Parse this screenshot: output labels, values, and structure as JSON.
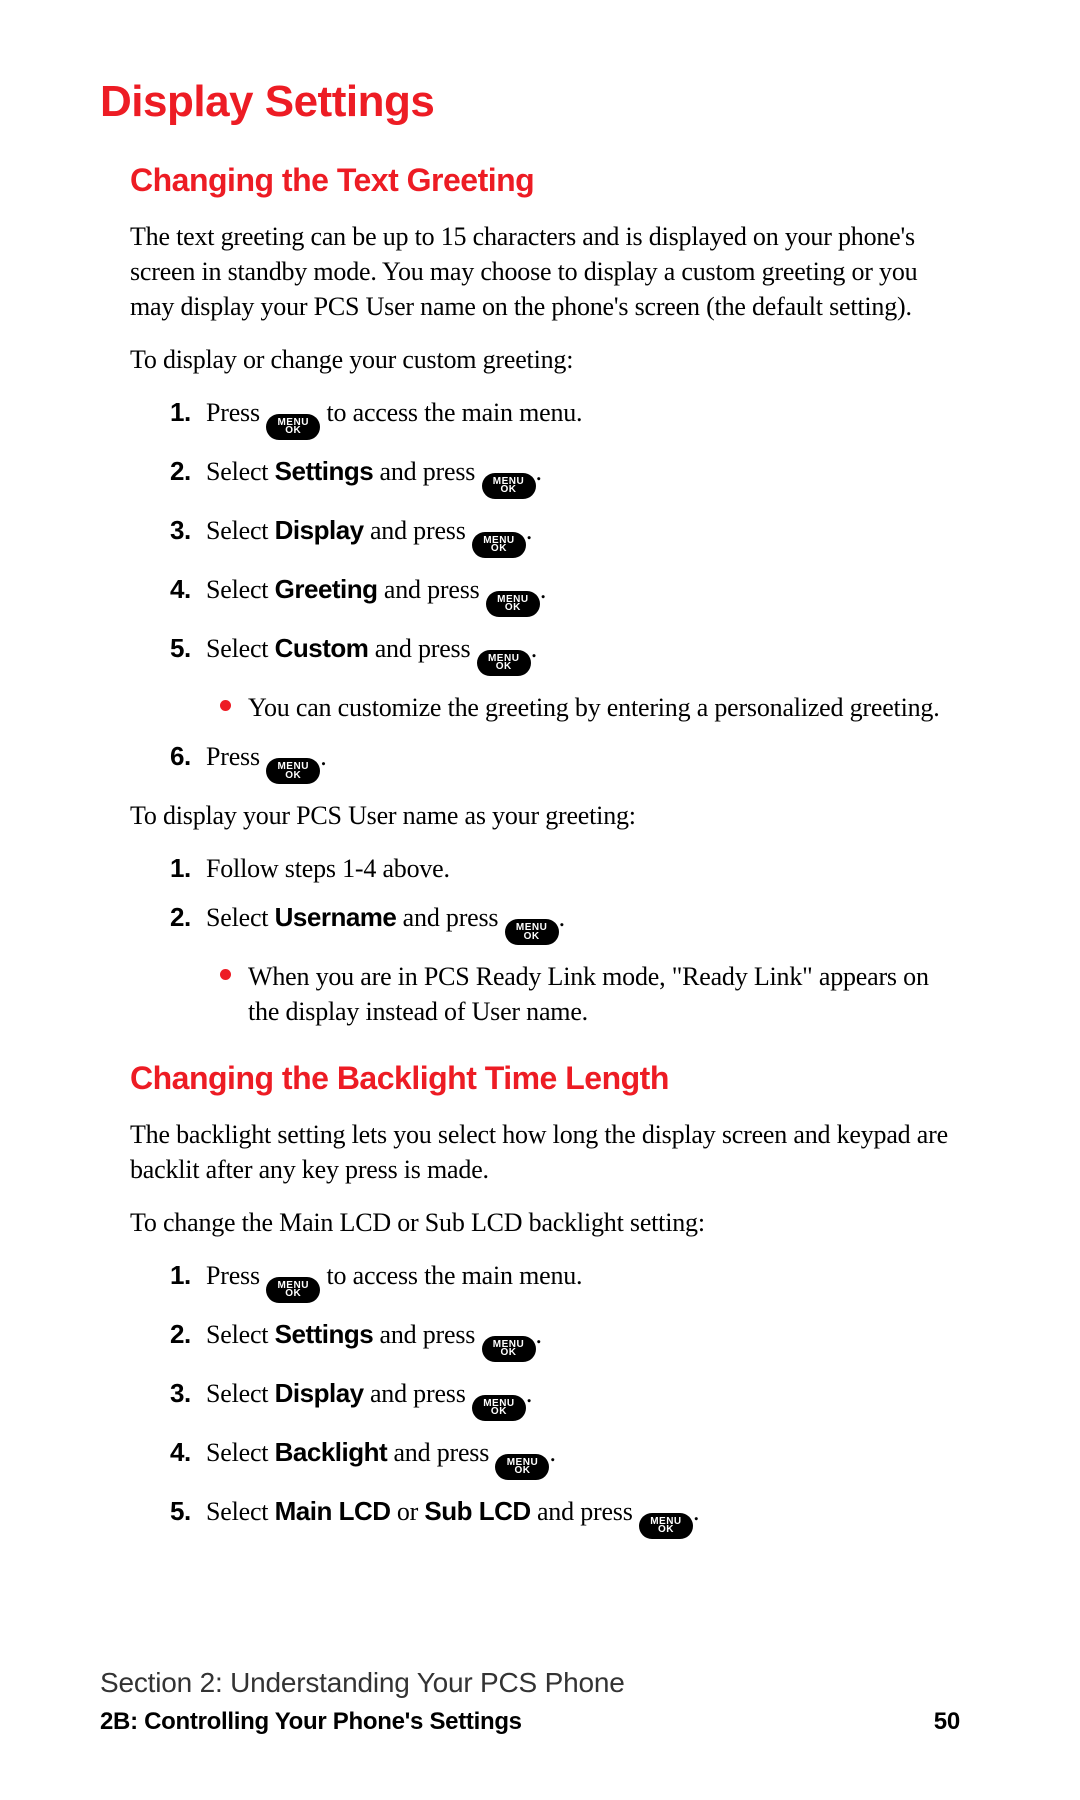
{
  "colors": {
    "accent_red": "#ed1c24",
    "text": "#000000",
    "background": "#ffffff",
    "pill_bg": "#000000",
    "pill_fg": "#ffffff",
    "footer_grey": "#333333"
  },
  "typography": {
    "body_family": "serif",
    "heading_family": "sans-serif-condensed-bold",
    "h1_size_pt": 33,
    "h2_size_pt": 24,
    "body_size_pt": 19
  },
  "pill": {
    "top": "MENU",
    "bottom": "OK"
  },
  "h1": "Display Settings",
  "sections": [
    {
      "h2": "Changing the Text Greeting",
      "intro": "The text greeting can be up to 15 characters and is displayed on your phone's screen in standby mode. You may choose to display a custom greeting or you may display your PCS User name on the phone's screen (the default setting).",
      "lead1": "To display or change your custom greeting:",
      "steps1": [
        {
          "n": "1.",
          "pre": "Press ",
          "pill": true,
          "post": " to access the main menu."
        },
        {
          "n": "2.",
          "pre": "Select ",
          "bold": "Settings",
          "mid": " and press ",
          "pill": true,
          "post": "."
        },
        {
          "n": "3.",
          "pre": "Select ",
          "bold": "Display",
          "mid": " and press ",
          "pill": true,
          "post": "."
        },
        {
          "n": "4.",
          "pre": "Select ",
          "bold": "Greeting",
          "mid": " and press ",
          "pill": true,
          "post": "."
        },
        {
          "n": "5.",
          "pre": "Select ",
          "bold": "Custom",
          "mid": " and press ",
          "pill": true,
          "post": ".",
          "sub": "You can customize the greeting by entering a personalized greeting."
        },
        {
          "n": "6.",
          "pre": "Press ",
          "pill": true,
          "post": "."
        }
      ],
      "lead2": "To display your PCS User name as your greeting:",
      "steps2": [
        {
          "n": "1.",
          "pre": "Follow steps 1-4 above."
        },
        {
          "n": "2.",
          "pre": "Select ",
          "bold": "Username",
          "mid": " and press ",
          "pill": true,
          "post": ".",
          "sub": "When you are in PCS Ready Link mode, \"Ready Link\" appears on the display instead of User name."
        }
      ]
    },
    {
      "h2": "Changing the Backlight Time Length",
      "intro": "The backlight setting lets you select how long the display screen and keypad are backlit after any key press is made.",
      "lead1": "To change the Main LCD or Sub LCD backlight setting:",
      "steps1": [
        {
          "n": "1.",
          "pre": "Press ",
          "pill": true,
          "post": " to access the main menu."
        },
        {
          "n": "2.",
          "pre": "Select ",
          "bold": "Settings",
          "mid": " and press ",
          "pill": true,
          "post": "."
        },
        {
          "n": "3.",
          "pre": "Select ",
          "bold": "Display",
          "mid": " and press ",
          "pill": true,
          "post": "."
        },
        {
          "n": "4.",
          "pre": "Select ",
          "bold": "Backlight",
          "mid": " and press ",
          "pill": true,
          "post": "."
        },
        {
          "n": "5.",
          "pre": "Select ",
          "bold": "Main LCD",
          "mid2": " or ",
          "bold2": "Sub LCD",
          "mid": " and press ",
          "pill": true,
          "post": "."
        }
      ]
    }
  ],
  "footer": {
    "line1": "Section 2: Understanding Your PCS Phone",
    "line2": "2B: Controlling Your Phone's Settings",
    "page": "50"
  }
}
